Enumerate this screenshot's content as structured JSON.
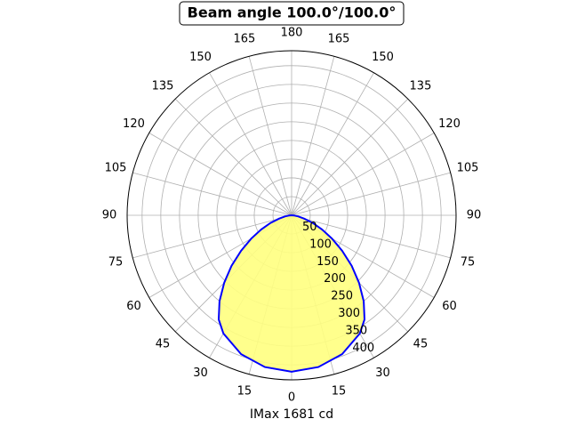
{
  "chart_data": {
    "type": "polar",
    "title": "Beam angle 100.0°/100.0°",
    "xlabel": "IMax 1681 cd",
    "x": [
      -90,
      -85,
      -80,
      -75,
      -70,
      -65,
      -60,
      -55,
      -50,
      -45,
      -40,
      -35,
      -30,
      -20,
      -10,
      0,
      10,
      20,
      30,
      35,
      40,
      45,
      50,
      55,
      60,
      65,
      70,
      75,
      80,
      85,
      90
    ],
    "series": [
      {
        "color": "#0000ff",
        "fill": "#ffff80",
        "values": [
          0,
          6,
          18,
          35,
          60,
          90,
          125,
          165,
          210,
          255,
          300,
          340,
          365,
          395,
          412,
          418,
          412,
          395,
          365,
          340,
          300,
          255,
          210,
          165,
          125,
          90,
          60,
          35,
          18,
          6,
          0
        ]
      }
    ],
    "ylim": [
      0,
      440
    ],
    "yticks": [
      50,
      100,
      150,
      200,
      250,
      300,
      350,
      400
    ],
    "xticks": [
      0,
      15,
      30,
      45,
      60,
      75,
      90,
      105,
      120,
      135,
      150,
      165,
      180,
      {
        "value": -165,
        "label": "165"
      },
      {
        "value": -150,
        "label": "150"
      },
      {
        "value": -135,
        "label": "135"
      },
      {
        "value": -120,
        "label": "120"
      },
      {
        "value": -105,
        "label": "105"
      },
      {
        "value": -90,
        "label": "90"
      },
      {
        "value": -75,
        "label": "75"
      },
      {
        "value": -60,
        "label": "60"
      },
      {
        "value": -45,
        "label": "45"
      },
      {
        "value": -30,
        "label": "30"
      },
      {
        "value": -15,
        "label": "15"
      }
    ],
    "grid": true
  }
}
